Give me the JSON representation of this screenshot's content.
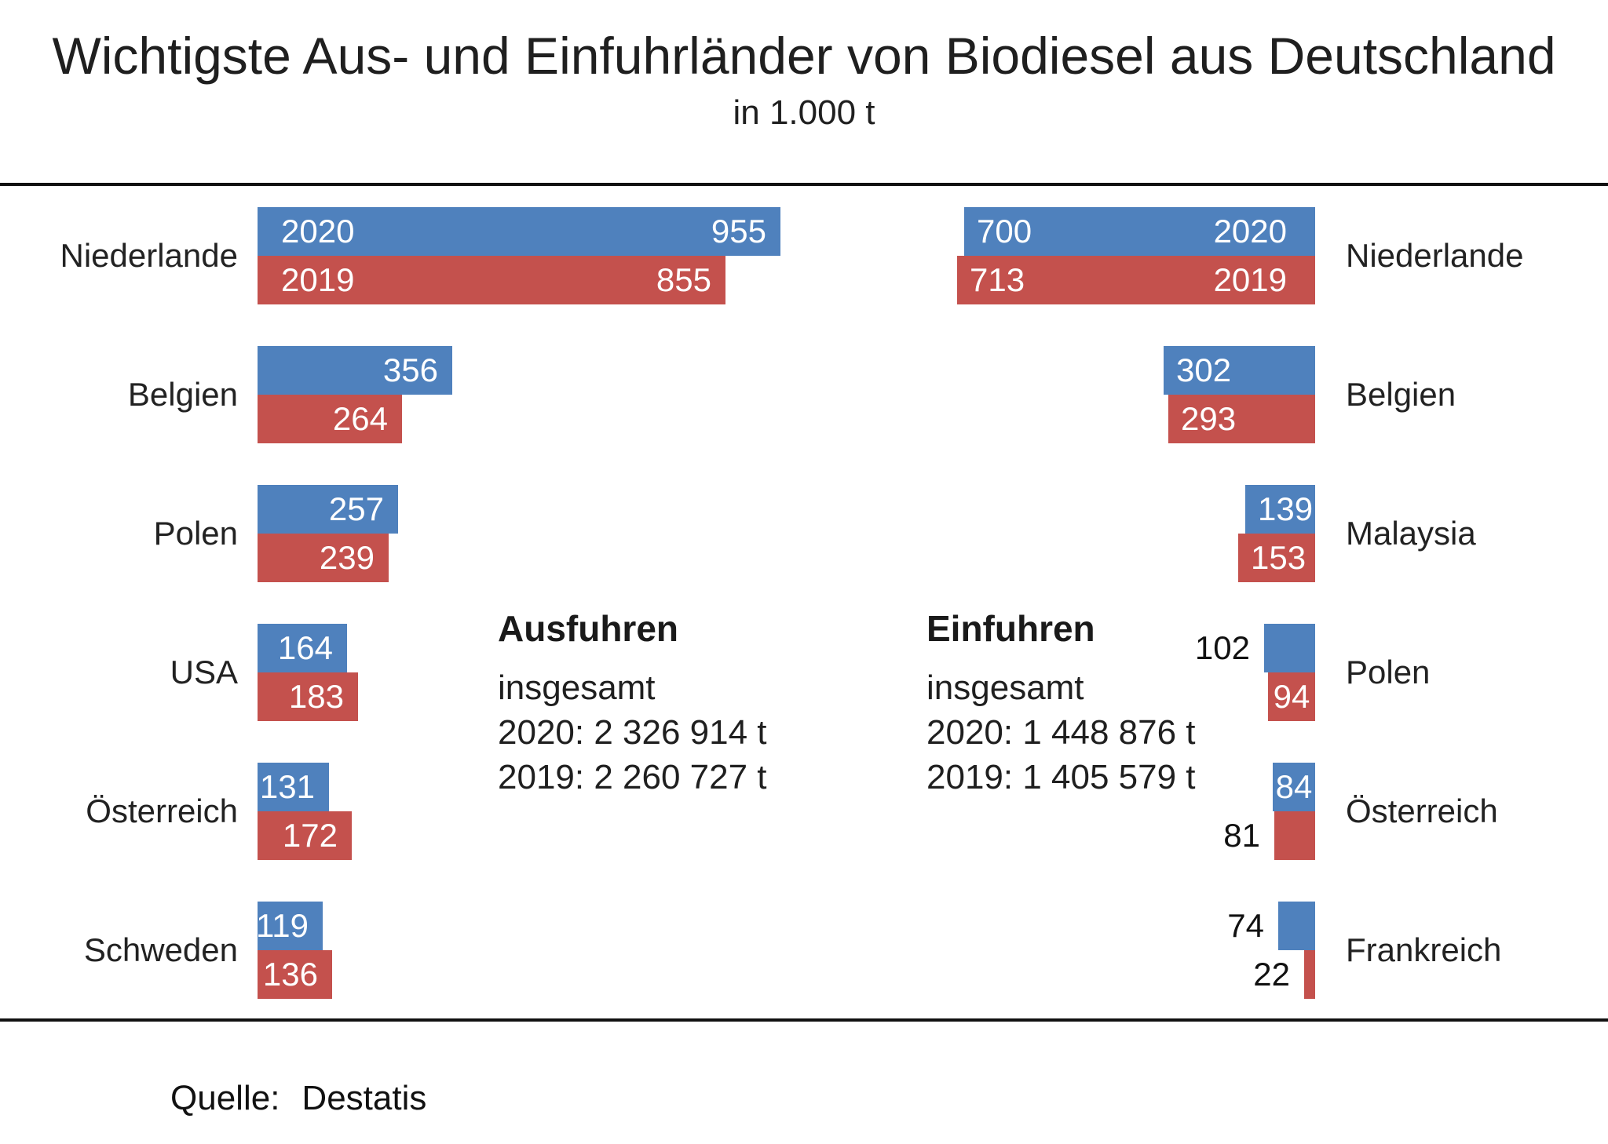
{
  "chart_data": {
    "type": "bar",
    "orientation": "horizontal",
    "title": "Wichtigste Aus- und Einfuhrländer von Biodiesel aus Deutschland",
    "subtitle": "in 1.000 t",
    "unit": "1.000 t",
    "grid": false,
    "colors": {
      "2020": "#4f81bd",
      "2019": "#c4514d"
    },
    "panels": [
      {
        "id": "ausfuhren",
        "heading": "Ausfuhren",
        "side": "left",
        "summary_lines": [
          "insgesamt",
          "2020: 2 326 914 t",
          "2019: 2 260 727 t"
        ],
        "categories": [
          "Niederlande",
          "Belgien",
          "Polen",
          "USA",
          "Österreich",
          "Schweden"
        ],
        "series": [
          {
            "name": "2020",
            "values": [
              955,
              356,
              257,
              164,
              131,
              119
            ]
          },
          {
            "name": "2019",
            "values": [
              855,
              264,
              239,
              183,
              172,
              136
            ]
          }
        ]
      },
      {
        "id": "einfuhren",
        "heading": "Einfuhren",
        "side": "right",
        "summary_lines": [
          "insgesamt",
          "2020: 1 448 876 t",
          "2019: 1 405 579 t"
        ],
        "categories": [
          "Niederlande",
          "Belgien",
          "Malaysia",
          "Polen",
          "Österreich",
          "Frankreich"
        ],
        "series": [
          {
            "name": "2020",
            "values": [
              700,
              302,
              139,
              102,
              84,
              74
            ]
          },
          {
            "name": "2019",
            "values": [
              713,
              293,
              153,
              94,
              81,
              22
            ]
          }
        ]
      }
    ],
    "source": {
      "label": "Quelle:",
      "value": "Destatis"
    }
  }
}
